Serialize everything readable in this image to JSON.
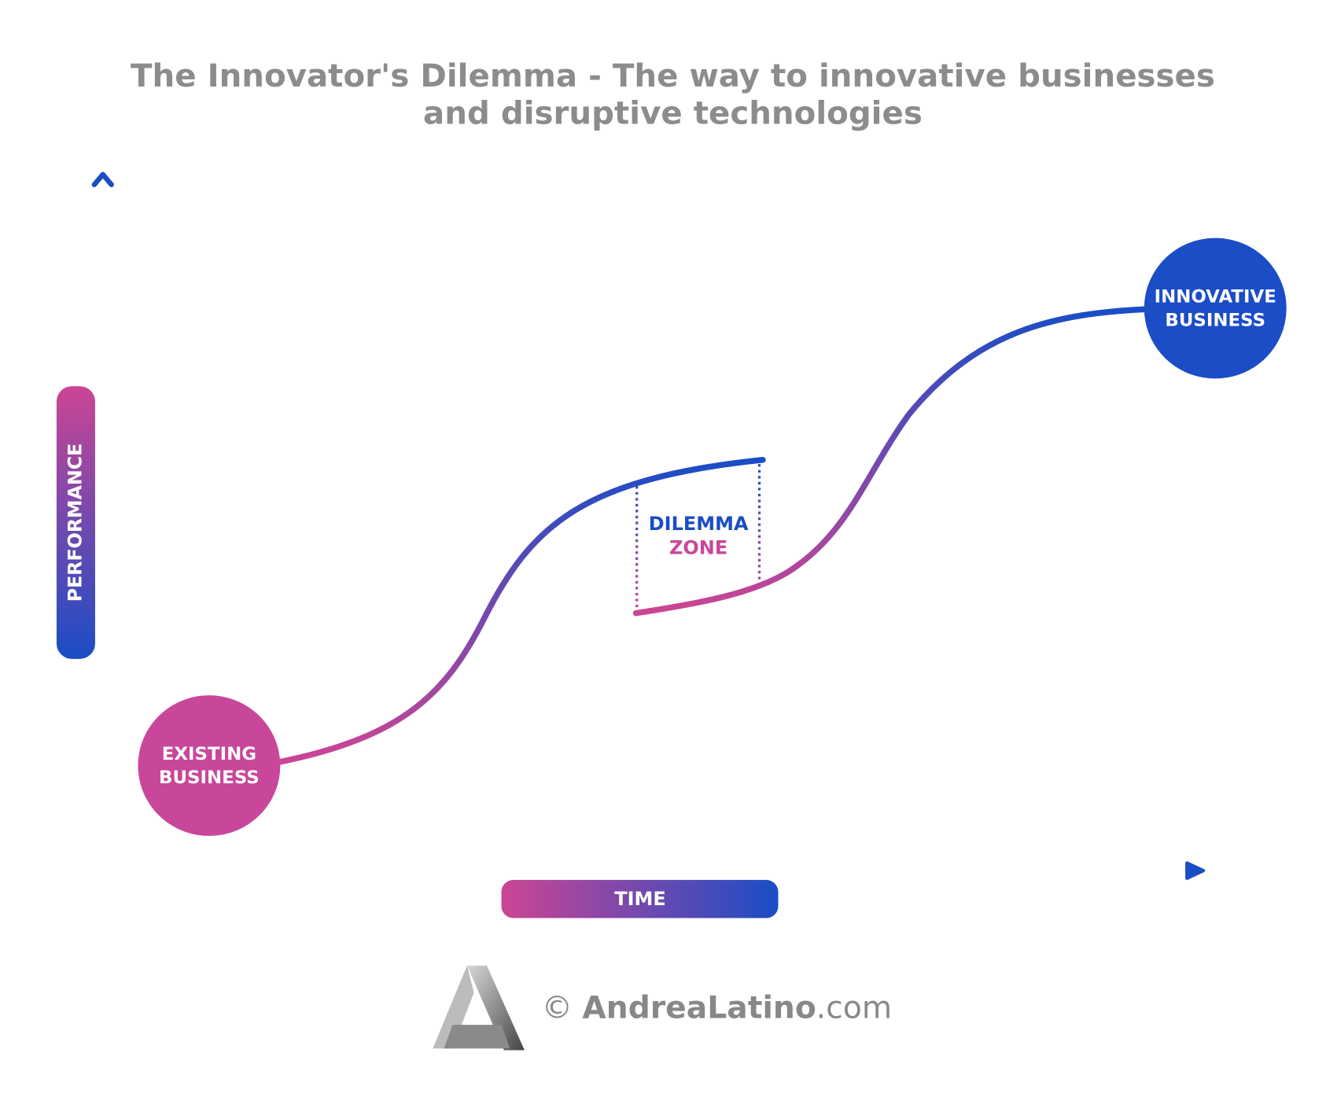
{
  "header": {
    "title": [
      "The Innovator's Dilemma - The way to innovative businesses",
      "and disruptive technologies"
    ]
  },
  "axes": {
    "y_label": "PERFORMANCE",
    "x_label": "TIME"
  },
  "nodes": [
    {
      "label": [
        "EXISTING",
        "BUSINESS"
      ]
    },
    {
      "label": [
        "INNOVATIVE",
        "BUSINESS"
      ]
    }
  ],
  "zone": {
    "label": [
      "DILEMMA",
      "ZONE"
    ]
  },
  "footer": {
    "copyright": "©",
    "brand": "AndreaLatino",
    "domain": ".com"
  }
}
